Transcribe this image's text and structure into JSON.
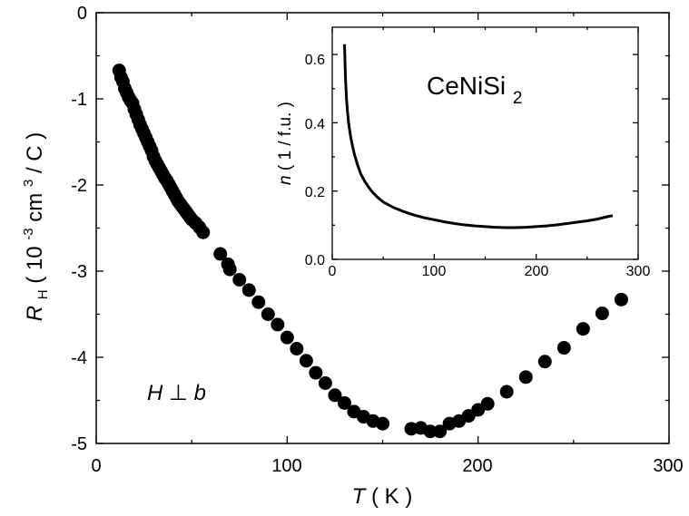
{
  "chart_data": [
    {
      "type": "scatter",
      "xlabel": {
        "symbol": "T",
        "unit": "( K )"
      },
      "ylabel": {
        "symbol": "R",
        "subscript": "H",
        "unit_prefix": "( 10",
        "unit_exp": "-3",
        "unit_mid": " cm",
        "unit_exp2": "3",
        "unit_suffix": "/ C )"
      },
      "xlim": [
        0,
        300
      ],
      "ylim": [
        -5,
        0
      ],
      "xticks": [
        "0",
        "100",
        "200",
        "300"
      ],
      "yticks": [
        "0",
        "-1",
        "-2",
        "-3",
        "-4",
        "-5"
      ],
      "annotation": {
        "left": "H",
        "mid": " ⊥ ",
        "right": "b"
      },
      "marker_color": "#000000",
      "series": [
        {
          "x": [
            12,
            13,
            14,
            15,
            16,
            17,
            18,
            19,
            20,
            21,
            22,
            23,
            24,
            25,
            26,
            27,
            28,
            29,
            30,
            31,
            32,
            33,
            34,
            35,
            36,
            37,
            38,
            39,
            40,
            41,
            42,
            43,
            44,
            45,
            46,
            47,
            48,
            49,
            50,
            52,
            54,
            56,
            65,
            69,
            70,
            75,
            80,
            85,
            90,
            95,
            100,
            105,
            110,
            115,
            120,
            125,
            130,
            135,
            140,
            145,
            150,
            165,
            170,
            175,
            180,
            185,
            190,
            195,
            200,
            205,
            215,
            225,
            235,
            245,
            255,
            265,
            275
          ],
          "y": [
            -0.67,
            -0.75,
            -0.8,
            -0.88,
            -0.93,
            -0.98,
            -1.02,
            -1.05,
            -1.12,
            -1.18,
            -1.24,
            -1.3,
            -1.35,
            -1.4,
            -1.45,
            -1.5,
            -1.55,
            -1.6,
            -1.67,
            -1.72,
            -1.76,
            -1.8,
            -1.84,
            -1.88,
            -1.92,
            -1.95,
            -1.99,
            -2.03,
            -2.07,
            -2.11,
            -2.15,
            -2.19,
            -2.22,
            -2.25,
            -2.28,
            -2.31,
            -2.34,
            -2.37,
            -2.4,
            -2.44,
            -2.49,
            -2.55,
            -2.8,
            -2.92,
            -2.98,
            -3.1,
            -3.22,
            -3.36,
            -3.5,
            -3.62,
            -3.77,
            -3.9,
            -4.04,
            -4.18,
            -4.3,
            -4.44,
            -4.53,
            -4.63,
            -4.69,
            -4.74,
            -4.77,
            -4.83,
            -4.82,
            -4.86,
            -4.86,
            -4.77,
            -4.74,
            -4.68,
            -4.61,
            -4.54,
            -4.4,
            -4.23,
            -4.05,
            -3.89,
            -3.67,
            -3.49,
            -3.33
          ]
        }
      ]
    },
    {
      "type": "line",
      "title": {
        "text": "CeNiSi",
        "subscript": "2"
      },
      "xlabel": "",
      "ylabel": {
        "symbol": "n",
        "unit": " ( 1 / f.u. )"
      },
      "xlim": [
        0,
        300
      ],
      "ylim": [
        0,
        0.68
      ],
      "xticks": [
        "0",
        "100",
        "200",
        "300"
      ],
      "yticks": [
        "0.0",
        "0.2",
        "0.4",
        "0.6"
      ],
      "line_color": "#000000",
      "series": [
        {
          "x": [
            12,
            13,
            14,
            15,
            16,
            18,
            20,
            22,
            25,
            28,
            32,
            36,
            40,
            45,
            50,
            60,
            70,
            80,
            90,
            100,
            110,
            120,
            130,
            140,
            150,
            160,
            170,
            180,
            190,
            200,
            210,
            220,
            230,
            240,
            250,
            260,
            270,
            275
          ],
          "y": [
            0.63,
            0.53,
            0.47,
            0.43,
            0.4,
            0.36,
            0.33,
            0.305,
            0.275,
            0.25,
            0.228,
            0.21,
            0.195,
            0.18,
            0.168,
            0.152,
            0.14,
            0.13,
            0.122,
            0.116,
            0.11,
            0.105,
            0.101,
            0.098,
            0.096,
            0.094,
            0.093,
            0.093,
            0.094,
            0.096,
            0.098,
            0.101,
            0.105,
            0.109,
            0.113,
            0.118,
            0.125,
            0.128
          ]
        }
      ]
    }
  ]
}
